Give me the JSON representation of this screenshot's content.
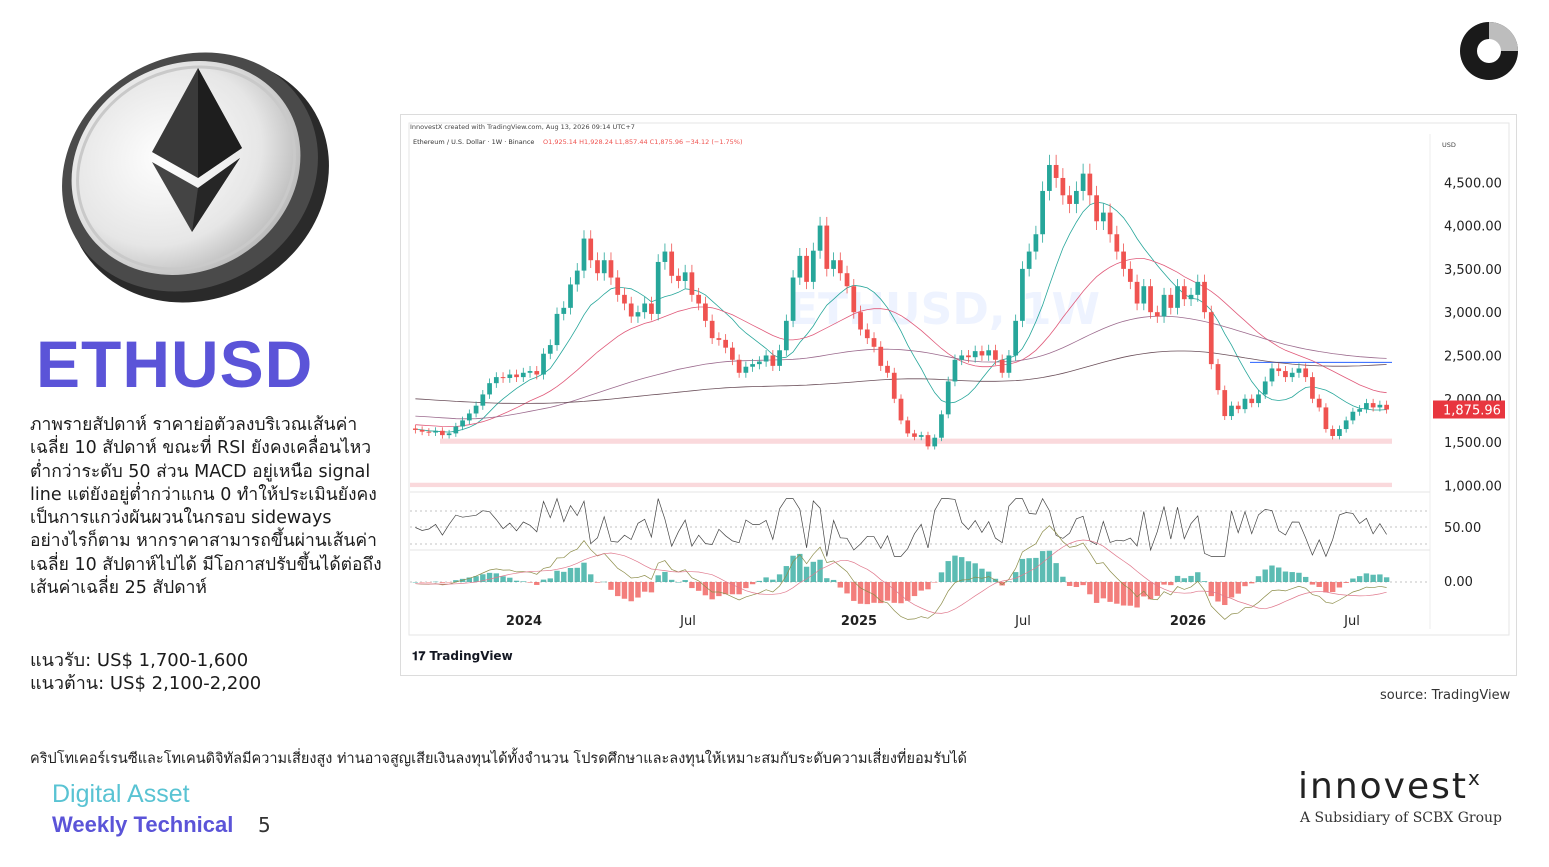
{
  "page": {
    "title": "ETHUSD",
    "analysis": "ภาพรายสัปดาห์ ราคาย่อตัวลงบริเวณเส้นค่าเฉลี่ย 10 สัปดาห์ ขณะที่ RSI ยังคงเคลื่อนไหวต่ำกว่าระดับ 50 ส่วน MACD อยู่เหนือ signal line แต่ยังอยู่ต่ำกว่าแกน 0 ทำให้ประเมินยังคงเป็นการแกว่งผันผวนในกรอบ sideways อย่างไรก็ตาม หากราคาสามารถขึ้นผ่านเส้นค่าเฉลี่ย 10 สัปดาห์ไปได้ มีโอกาสปรับขึ้นได้ต่อถึงเส้นค่าเฉลี่ย 25 สัปดาห์",
    "support": "แนวรับ: US$ 1,700-1,600",
    "resistance": "แนวต้าน: US$ 2,100-2,200",
    "source": "source: TradingView",
    "disclaimer": "คริปโทเคอร์เรนซีและโทเคนดิจิทัลมีความเสี่ยงสูง ท่านอาจสูญเสียเงินลงทุนได้ทั้งจำนวน โปรดศึกษาและลงทุนให้เหมาะสมกับระดับความเสี่ยงที่ยอมรับได้",
    "footer_line1": "Digital Asset",
    "footer_line2": "Weekly Technical",
    "page_number": "5",
    "logo_text": "innovest",
    "logo_x": "x",
    "logo_tagline": "A Subsidiary of SCBX Group"
  },
  "colors": {
    "title": "#5b54d8",
    "footer_teal": "#59c3d3",
    "bull": "#26a69a",
    "bear": "#ef5350",
    "price_tag": "#e8363f",
    "support_zone": "#f8c9cd"
  },
  "chart_data": {
    "type": "candlestick",
    "header": "InnovestX created with TradingView.com, Aug 13, 2026 09:14 UTC+7",
    "symbol_line": "Ethereum / U.S. Dollar · 1W · Binance",
    "ohlc_line": "O1,925.14 H1,928.24 L1,857.44 C1,875.96 −34.12 (−1.75%)",
    "watermark": "ETHUSD, 1W",
    "currency": "USD",
    "last_price": "1,875.96",
    "last_value": 1875.96,
    "y_ticks": [
      1000,
      1500,
      2000,
      2500,
      3000,
      3500,
      4000,
      4500
    ],
    "y_tick_labels": [
      "1,000.00",
      "1,500.00",
      "2,000.00",
      "2,500.00",
      "3,000.00",
      "3,500.00",
      "4,000.00",
      "4,500.00"
    ],
    "ylim": [
      900,
      5000
    ],
    "x_labels": [
      "2024",
      "Jul",
      "2025",
      "Jul",
      "2026",
      "Jul"
    ],
    "rsi_label": "50.00",
    "macd_label": "0.00",
    "support_zone": [
      1480,
      1540
    ],
    "lower_zone": [
      980,
      1030
    ],
    "resistance_line": 2420,
    "series_close": [
      1640,
      1620,
      1610,
      1630,
      1580,
      1600,
      1680,
      1750,
      1830,
      1920,
      2050,
      2180,
      2250,
      2240,
      2280,
      2250,
      2300,
      2320,
      2280,
      2520,
      2620,
      2980,
      3050,
      3320,
      3480,
      3850,
      3600,
      3450,
      3600,
      3400,
      3200,
      3100,
      2950,
      3000,
      3100,
      2980,
      3580,
      3700,
      3420,
      3360,
      3460,
      3200,
      3100,
      2900,
      2700,
      2680,
      2590,
      2450,
      2300,
      2370,
      2400,
      2430,
      2500,
      2380,
      2560,
      2900,
      3400,
      3650,
      3350,
      3710,
      4000,
      3500,
      3600,
      3450,
      3300,
      3000,
      2800,
      2700,
      2600,
      2380,
      2300,
      2000,
      1750,
      1600,
      1560,
      1580,
      1450,
      1550,
      1820,
      2200,
      2450,
      2500,
      2480,
      2550,
      2500,
      2560,
      2450,
      2300,
      2500,
      2900,
      3500,
      3700,
      3900,
      4400,
      4700,
      4550,
      4350,
      4250,
      4400,
      4600,
      4350,
      4050,
      4150,
      3900,
      3700,
      3500,
      3350,
      3100,
      3300,
      3000,
      2950,
      3200,
      3050,
      3300,
      3150,
      3200,
      3350,
      3000,
      2400,
      2100,
      1800,
      1920,
      1880,
      2000,
      1950,
      2050,
      2200,
      2350,
      2320,
      2250,
      2300,
      2350,
      2250,
      2000,
      1900,
      1650,
      1570,
      1650,
      1750,
      1850,
      1880,
      1950,
      1900,
      1930,
      1875.96
    ],
    "ma10": [
      1650,
      1640,
      1630,
      1625,
      1620,
      1615,
      1625,
      1645,
      1670,
      1710,
      1770,
      1850,
      1930,
      2000,
      2060,
      2120,
      2170,
      2220,
      2250,
      2290,
      2350,
      2460,
      2580,
      2700,
      2830,
      2970,
      3080,
      3140,
      3210,
      3270,
      3290,
      3280,
      3270,
      3230,
      3180,
      3120,
      3150,
      3180,
      3200,
      3230,
      3270,
      3260,
      3240,
      3200,
      3130,
      3060,
      2990,
      2920,
      2830,
      2760,
      2700,
      2640,
      2580,
      2510,
      2470,
      2480,
      2540,
      2650,
      2740,
      2840,
      2970,
      3080,
      3150,
      3220,
      3280,
      3310,
      3300,
      3280,
      3230,
      3150,
      3050,
      2920,
      2780,
      2620,
      2480,
      2350,
      2200,
      2070,
      1980,
      1950,
      1960,
      2000,
      2050,
      2130,
      2230,
      2330,
      2420,
      2450,
      2470,
      2500,
      2580,
      2720,
      2890,
      3080,
      3310,
      3530,
      3740,
      3900,
      4040,
      4160,
      4240,
      4270,
      4260,
      4230,
      4170,
      4090,
      3980,
      3850,
      3740,
      3640,
      3540,
      3450,
      3360,
      3280,
      3210,
      3160,
      3150,
      3100,
      3020,
      2900,
      2750,
      2620,
      2470,
      2330,
      2200,
      2100,
      2030,
      1990,
      1980,
      1990,
      2020,
      2080,
      2130,
      2140,
      2120,
      2100,
      2060,
      2010,
      1960,
      1920,
      1890,
      1880,
      1870,
      1870,
      1875
    ],
    "ma25": [
      1700,
      1695,
      1690,
      1685,
      1680,
      1678,
      1680,
      1688,
      1700,
      1715,
      1735,
      1760,
      1790,
      1825,
      1860,
      1895,
      1935,
      1975,
      2010,
      2045,
      2090,
      2140,
      2200,
      2265,
      2330,
      2400,
      2470,
      2540,
      2600,
      2660,
      2720,
      2770,
      2810,
      2840,
      2870,
      2890,
      2920,
      2950,
      2980,
      3010,
      3030,
      3050,
      3060,
      3060,
      3050,
      3030,
      3000,
      2970,
      2930,
      2890,
      2850,
      2810,
      2770,
      2730,
      2700,
      2680,
      2680,
      2690,
      2710,
      2740,
      2780,
      2820,
      2860,
      2900,
      2940,
      2980,
      3010,
      3030,
      3040,
      3040,
      3030,
      3000,
      2960,
      2910,
      2850,
      2790,
      2720,
      2650,
      2580,
      2520,
      2470,
      2430,
      2400,
      2380,
      2370,
      2370,
      2380,
      2390,
      2400,
      2420,
      2450,
      2500,
      2560,
      2640,
      2730,
      2830,
      2940,
      3040,
      3140,
      3240,
      3330,
      3410,
      3470,
      3520,
      3560,
      3590,
      3610,
      3620,
      3620,
      3600,
      3570,
      3540,
      3500,
      3460,
      3410,
      3370,
      3330,
      3290,
      3240,
      3180,
      3110,
      3040,
      2970,
      2900,
      2830,
      2760,
      2700,
      2650,
      2600,
      2560,
      2530,
      2500,
      2470,
      2440,
      2400,
      2360,
      2320,
      2280,
      2240,
      2200,
      2160,
      2130,
      2100,
      2080,
      2070
    ],
    "ma50": [
      1800,
      1795,
      1790,
      1785,
      1780,
      1775,
      1770,
      1768,
      1768,
      1770,
      1775,
      1782,
      1790,
      1800,
      1812,
      1825,
      1840,
      1855,
      1870,
      1885,
      1900,
      1920,
      1942,
      1966,
      1990,
      2016,
      2042,
      2068,
      2094,
      2120,
      2145,
      2170,
      2195,
      2218,
      2240,
      2260,
      2280,
      2300,
      2320,
      2340,
      2355,
      2370,
      2385,
      2400,
      2410,
      2420,
      2428,
      2434,
      2438,
      2440,
      2442,
      2444,
      2446,
      2448,
      2450,
      2452,
      2456,
      2462,
      2470,
      2480,
      2492,
      2505,
      2518,
      2530,
      2542,
      2552,
      2560,
      2566,
      2570,
      2572,
      2572,
      2570,
      2566,
      2560,
      2552,
      2542,
      2530,
      2516,
      2500,
      2484,
      2468,
      2452,
      2440,
      2432,
      2426,
      2424,
      2424,
      2426,
      2430,
      2436,
      2446,
      2460,
      2478,
      2500,
      2526,
      2556,
      2590,
      2626,
      2664,
      2702,
      2740,
      2776,
      2810,
      2842,
      2870,
      2894,
      2914,
      2930,
      2942,
      2950,
      2954,
      2954,
      2950,
      2944,
      2934,
      2922,
      2908,
      2892,
      2874,
      2854,
      2832,
      2810,
      2786,
      2762,
      2738,
      2714,
      2690,
      2668,
      2646,
      2626,
      2608,
      2590,
      2574,
      2560,
      2546,
      2534,
      2522,
      2512,
      2502,
      2494,
      2486,
      2480,
      2474,
      2470,
      2466
    ],
    "ma100": [
      2000,
      1995,
      1990,
      1985,
      1980,
      1975,
      1970,
      1966,
      1962,
      1958,
      1955,
      1952,
      1950,
      1948,
      1947,
      1946,
      1946,
      1946,
      1947,
      1948,
      1950,
      1953,
      1956,
      1960,
      1965,
      1970,
      1976,
      1982,
      1989,
      1996,
      2004,
      2012,
      2020,
      2028,
      2036,
      2044,
      2052,
      2060,
      2068,
      2076,
      2084,
      2092,
      2100,
      2108,
      2114,
      2120,
      2126,
      2130,
      2134,
      2138,
      2140,
      2142,
      2144,
      2146,
      2148,
      2150,
      2152,
      2155,
      2158,
      2162,
      2166,
      2171,
      2176,
      2182,
      2188,
      2194,
      2200,
      2206,
      2212,
      2218,
      2222,
      2226,
      2228,
      2230,
      2230,
      2230,
      2228,
      2226,
      2222,
      2218,
      2214,
      2210,
      2206,
      2204,
      2202,
      2202,
      2202,
      2204,
      2206,
      2210,
      2216,
      2224,
      2234,
      2246,
      2260,
      2276,
      2294,
      2314,
      2334,
      2356,
      2378,
      2400,
      2422,
      2442,
      2462,
      2480,
      2496,
      2510,
      2522,
      2532,
      2540,
      2546,
      2550,
      2552,
      2552,
      2550,
      2546,
      2540,
      2532,
      2522,
      2510,
      2498,
      2486,
      2472,
      2460,
      2448,
      2436,
      2426,
      2416,
      2408,
      2400,
      2394,
      2388,
      2384,
      2380,
      2378,
      2376,
      2376,
      2376,
      2378,
      2380,
      2384,
      2388,
      2392,
      2396
    ]
  }
}
